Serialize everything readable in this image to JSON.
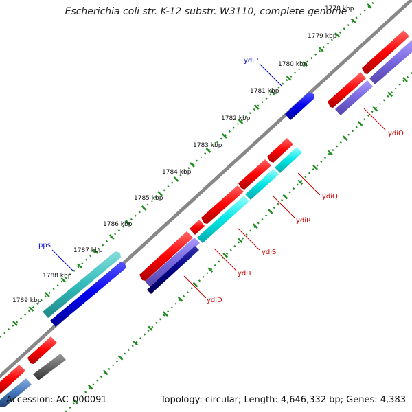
{
  "title": "Escherichia coli str. K-12 substr. W3110, complete genome",
  "accession": "Accession: AC_000091",
  "summary": "Topology: circular; Length: 4,646,332 bp; Genes: 4,383",
  "kbp_labels": [
    "1778 kbp",
    "1779 kbp",
    "1780 kbp",
    "1781 kbp",
    "1782 kbp",
    "1783 kbp",
    "1784 kbp",
    "1785 kbp",
    "1786 kbp",
    "1787 kbp",
    "1788 kbp",
    "1789 kbp"
  ],
  "genes": {
    "ydiP": "ydiP",
    "pps": "pps",
    "ydiO": "ydiO",
    "ydiQ": "ydiQ",
    "ydiR": "ydiR",
    "ydiS": "ydiS",
    "ydiT": "ydiT",
    "ydiD": "ydiD"
  },
  "colors": {
    "forward_cds": "#ff0000",
    "reverse_cds": "#0000ee",
    "cyan": "#00e5e5",
    "teal": "#33bbbb",
    "lavender": "#7766dd",
    "navy": "#000088",
    "backbone": "#888888",
    "tick": "#228b22"
  }
}
